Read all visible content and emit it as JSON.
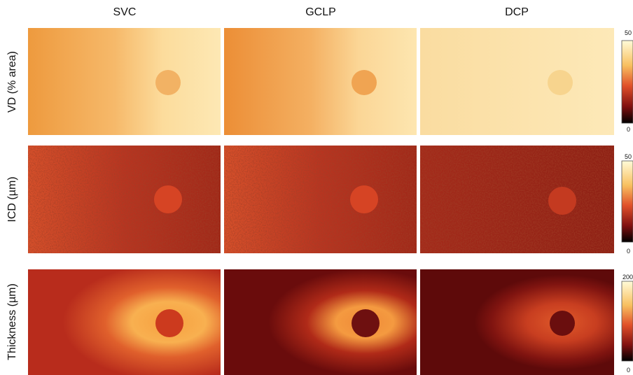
{
  "columns": [
    "SVC",
    "GCLP",
    "DCP"
  ],
  "rows": [
    "VD (% area)",
    "ICD (µm)",
    "Thickness (µm)"
  ],
  "colorbars": [
    {
      "max": "50",
      "min": "0"
    },
    {
      "max": "50",
      "min": "0"
    },
    {
      "max": "200",
      "min": "0"
    }
  ]
}
